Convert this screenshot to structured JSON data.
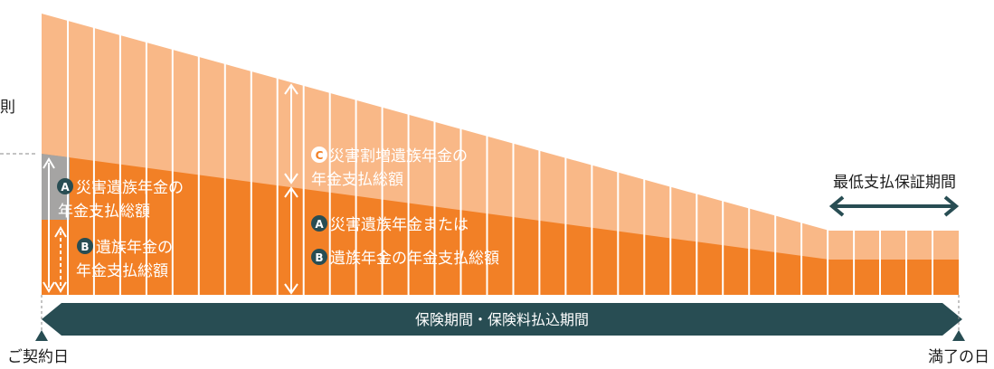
{
  "left_text": "則",
  "annotations": {
    "c_letter": "C",
    "c_line1": "災害割増遺族年金の",
    "c_line2": "年金支払総額",
    "a_left_letter": "A",
    "a_left_line1": "災害遺族年金の",
    "a_left_line2": "年金支払総額",
    "b_left_letter": "B",
    "b_left_line1": "遺族年金の",
    "b_left_line2": "年金支払総額",
    "a_mid_letter": "A",
    "a_mid_line": "災害遺族年金または",
    "b_mid_letter": "B",
    "b_mid_line": "遺族年金の年金支払総額"
  },
  "guarantee_period_label": "最低支払保証期間",
  "period_bar_label": "保険期間・保険料払込期間",
  "contract_day_label": "ご契約日",
  "maturity_day_label": "満了の日",
  "colors": {
    "light_orange": "#f9b887",
    "dark_orange": "#f28026",
    "gray": "#a5a4a3",
    "dark_teal": "#284d53",
    "text": "#1d1d1d"
  }
}
